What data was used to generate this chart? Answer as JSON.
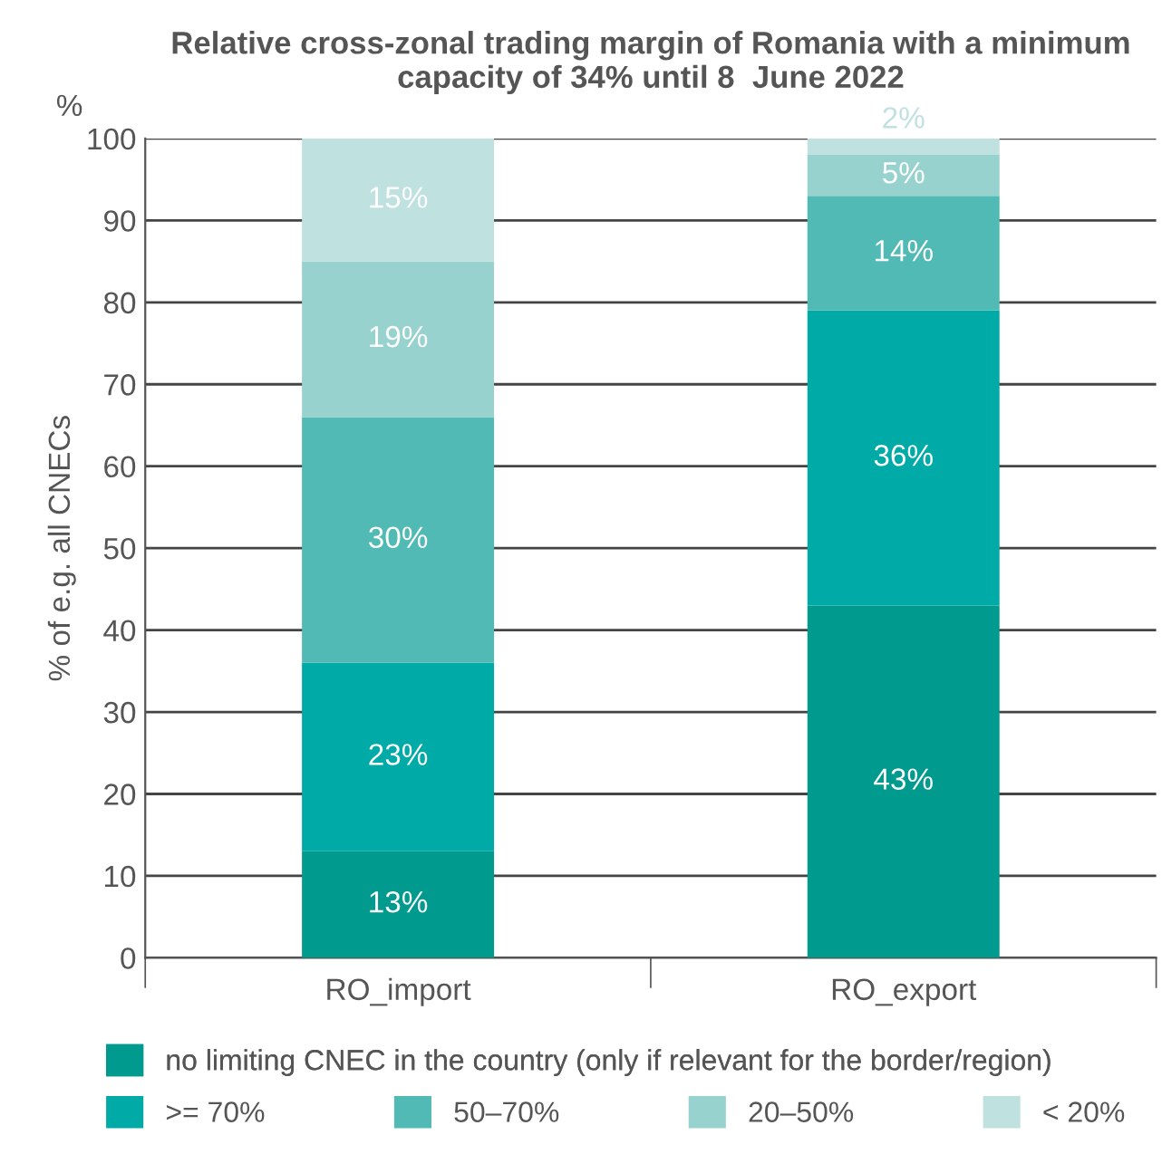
{
  "chart_data": {
    "type": "bar",
    "stacked": true,
    "title": "Relative cross-zonal trading margin of Romania with a minimum capacity of 34% until 8  June 2022",
    "ylabel": "% of e.g. all CNECs",
    "annotations": [
      "%"
    ],
    "categories": [
      "RO_import",
      "RO_export"
    ],
    "series": [
      {
        "name": "no limiting CNEC in the country (only if relevant for the border/region)",
        "color": "#009a8e",
        "values": [
          13,
          43
        ],
        "value_labels": [
          "13%",
          "43%"
        ]
      },
      {
        "name": ">= 70%",
        "color": "#00aaa6",
        "values": [
          23,
          36
        ],
        "value_labels": [
          "23%",
          "36%"
        ]
      },
      {
        "name": "50–70%",
        "color": "#52bab5",
        "values": [
          30,
          14
        ],
        "value_labels": [
          "30%",
          "14%"
        ]
      },
      {
        "name": "20–50%",
        "color": "#97d2cf",
        "values": [
          19,
          5
        ],
        "value_labels": [
          "19%",
          "5%"
        ]
      },
      {
        "name": "< 20%",
        "color": "#bfe1e0",
        "values": [
          15,
          2
        ],
        "value_labels": [
          "15%",
          "2%"
        ]
      }
    ],
    "ylim": [
      0,
      100
    ],
    "yticks": [
      0,
      10,
      20,
      30,
      40,
      50,
      60,
      70,
      80,
      90,
      100
    ],
    "grid": "y",
    "legend": "bottom"
  }
}
